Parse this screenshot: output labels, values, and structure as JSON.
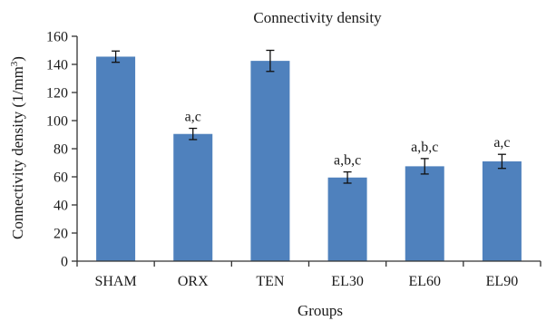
{
  "chart_data": {
    "type": "bar",
    "title": "Connectivity density",
    "xlabel": "Groups",
    "ylabel_main": "Connectivity density (1/mm",
    "ylabel_sup": "3",
    "ylabel_close": ")",
    "categories": [
      "SHAM",
      "ORX",
      "TEN",
      "EL30",
      "EL60",
      "EL90"
    ],
    "values": [
      145.5,
      90.5,
      142.5,
      59.5,
      67.5,
      71.0
    ],
    "errors": [
      4.0,
      4.0,
      7.5,
      4.0,
      5.5,
      5.0
    ],
    "annotations": [
      "",
      "a,c",
      "",
      "a,b,c",
      "a,b,c",
      "a,c"
    ],
    "ylim": [
      0,
      160
    ],
    "yticks": [
      0,
      20,
      40,
      60,
      80,
      100,
      120,
      140,
      160
    ],
    "bar_color": "#4f81bd",
    "grid": false,
    "legend": "none"
  }
}
